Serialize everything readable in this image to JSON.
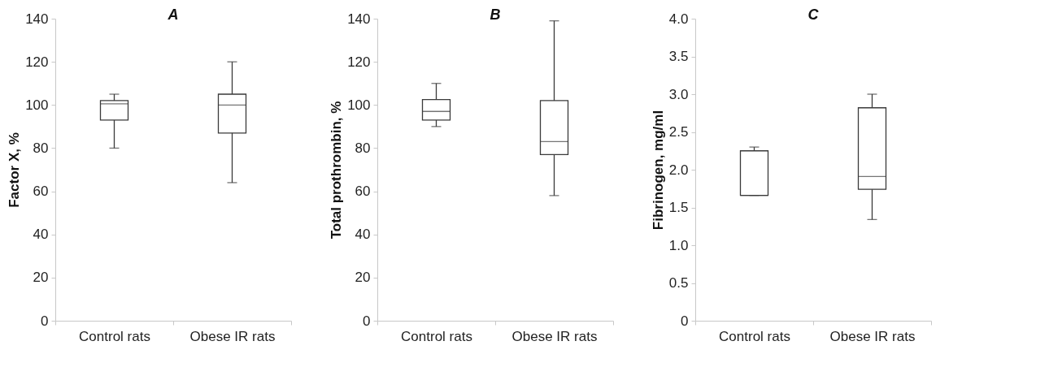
{
  "chart_data": [
    {
      "type": "box",
      "title": "A",
      "ylabel": "Factor X, %",
      "categories": [
        "Control rats",
        "Obese IR rats"
      ],
      "boxes": [
        {
          "low": 80,
          "q1": 93,
          "median": 100.5,
          "q3": 102,
          "high": 105
        },
        {
          "low": 64,
          "q1": 87,
          "median": 100,
          "q3": 105,
          "high": 120
        }
      ],
      "ylim": [
        0,
        140
      ],
      "yticks": [
        0,
        20,
        40,
        60,
        80,
        100,
        120,
        140
      ]
    },
    {
      "type": "box",
      "title": "B",
      "ylabel": "Total prothrombin, %",
      "categories": [
        "Control rats",
        "Obese IR rats"
      ],
      "boxes": [
        {
          "low": 90,
          "q1": 93,
          "median": 97,
          "q3": 102.5,
          "high": 110
        },
        {
          "low": 58,
          "q1": 77,
          "median": 83,
          "q3": 102,
          "high": 139
        }
      ],
      "ylim": [
        0,
        140
      ],
      "yticks": [
        0,
        20,
        40,
        60,
        80,
        100,
        120,
        140
      ]
    },
    {
      "type": "box",
      "title": "C",
      "ylabel": "Fibrinogen, mg/ml",
      "categories": [
        "Control rats",
        "Obese IR rats"
      ],
      "boxes": [
        {
          "low": 1.66,
          "q1": 1.66,
          "median": 1.66,
          "q3": 2.25,
          "high": 2.3
        },
        {
          "low": 1.34,
          "q1": 1.74,
          "median": 1.91,
          "q3": 2.82,
          "high": 3.0
        }
      ],
      "ylim": [
        0,
        4
      ],
      "yticks": [
        0,
        {
          "value": 0.5,
          "label": "0.5"
        },
        {
          "value": 1,
          "label": "1.0"
        },
        {
          "value": 1.5,
          "label": "1.5"
        },
        {
          "value": 2,
          "label": "2.0"
        },
        {
          "value": 2.5,
          "label": "2.5"
        },
        {
          "value": 3,
          "label": "3.0"
        },
        {
          "value": 3.5,
          "label": "3.5"
        },
        {
          "value": 4,
          "label": "4.0"
        }
      ]
    }
  ]
}
